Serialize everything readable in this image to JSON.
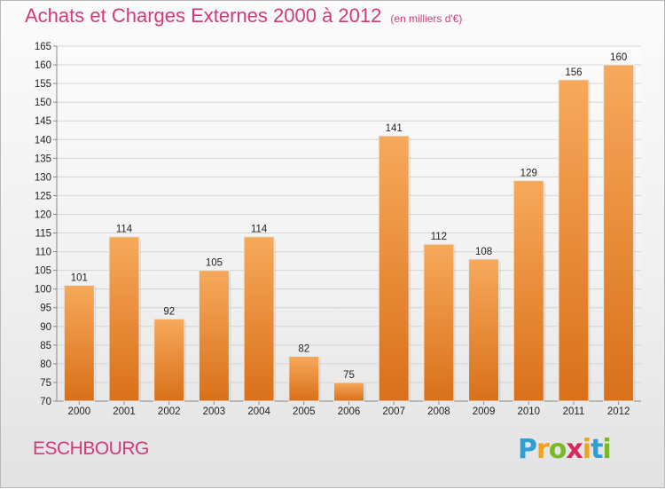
{
  "header": {
    "title": "Achats et Charges Externes 2000 à 2012",
    "unit": "(en milliers d'€)"
  },
  "footer": {
    "commune": "ESCHBOURG",
    "logo_letters": [
      "P",
      "r",
      "o",
      "x",
      "i",
      "t",
      "i"
    ],
    "logo_colors": [
      "#2e9ed6",
      "#f0a21c",
      "#7ab827",
      "#d9285e",
      "#f0a21c",
      "#2e9ed6",
      "#7ab827"
    ]
  },
  "colors": {
    "title": "#d23a7b",
    "bar_light": "#f7a95b",
    "bar_dark": "#d9701a",
    "axis": "#888888",
    "grid": "#d4d4d4"
  },
  "chart_data": {
    "type": "bar",
    "categories": [
      "2000",
      "2001",
      "2002",
      "2003",
      "2004",
      "2005",
      "2006",
      "2007",
      "2008",
      "2009",
      "2010",
      "2011",
      "2012"
    ],
    "values": [
      101,
      114,
      92,
      105,
      114,
      82,
      75,
      141,
      112,
      108,
      129,
      156,
      160
    ],
    "yticks": [
      70,
      75,
      80,
      85,
      90,
      95,
      100,
      105,
      110,
      115,
      120,
      125,
      130,
      135,
      140,
      145,
      150,
      155,
      160,
      165
    ],
    "ylim": [
      70,
      165
    ],
    "grid": true,
    "legend": "none"
  }
}
